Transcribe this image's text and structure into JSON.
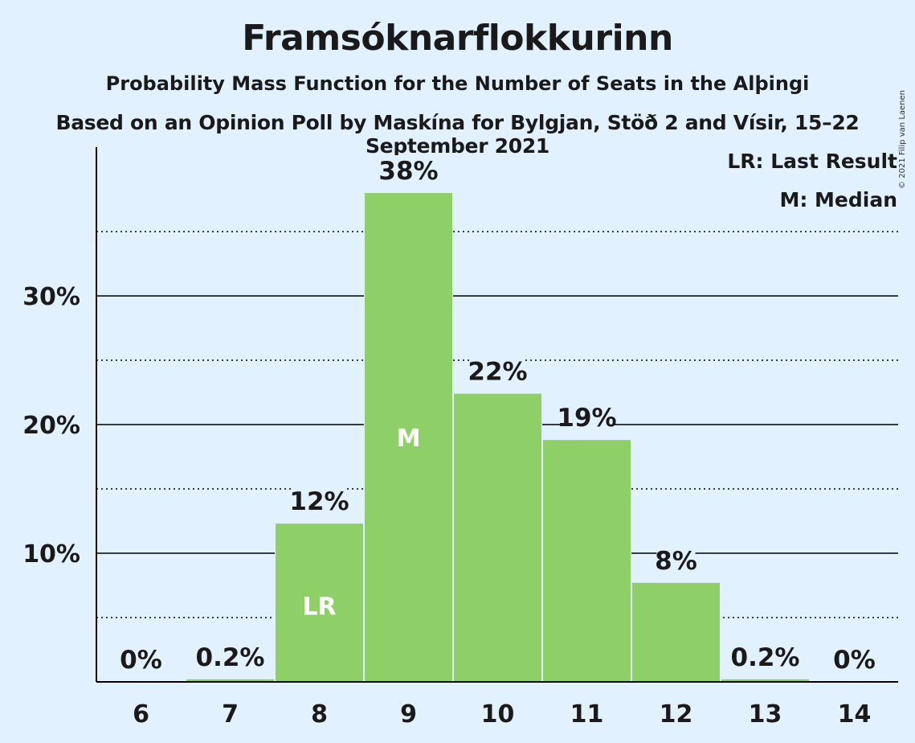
{
  "header": {
    "title": "Framsóknarflokkurinn",
    "subtitle": "Probability Mass Function for the Number of Seats in the Alþingi",
    "source": "Based on an Opinion Poll by Maskína for Bylgjan, Stöð 2 and Vísir, 15–22 September 2021",
    "copyright": "© 2021 Filip van Laenen"
  },
  "legend": {
    "last_result": "LR: Last Result",
    "median": "M: Median"
  },
  "colors": {
    "bar": "#8ecf68",
    "background": "#e2f1ff",
    "axis": "#000000"
  },
  "chart_data": {
    "type": "bar",
    "categories": [
      "6",
      "7",
      "8",
      "9",
      "10",
      "11",
      "12",
      "13",
      "14"
    ],
    "values": [
      0,
      0.2,
      12.3,
      38.0,
      22.4,
      18.8,
      7.7,
      0.2,
      0
    ],
    "value_labels": [
      "0%",
      "0.2%",
      "12%",
      "38%",
      "22%",
      "19%",
      "8%",
      "0.2%",
      "0%"
    ],
    "ylim": [
      0,
      41.5
    ],
    "y_major_ticks": [
      10,
      20,
      30
    ],
    "y_major_tick_labels": [
      "10%",
      "20%",
      "30%"
    ],
    "y_minor_ticks": [
      5,
      15,
      25,
      35
    ],
    "markers": [
      {
        "category": "8",
        "label": "LR"
      },
      {
        "category": "9",
        "label": "M"
      }
    ],
    "grid": true,
    "legend_position": "top-right"
  }
}
